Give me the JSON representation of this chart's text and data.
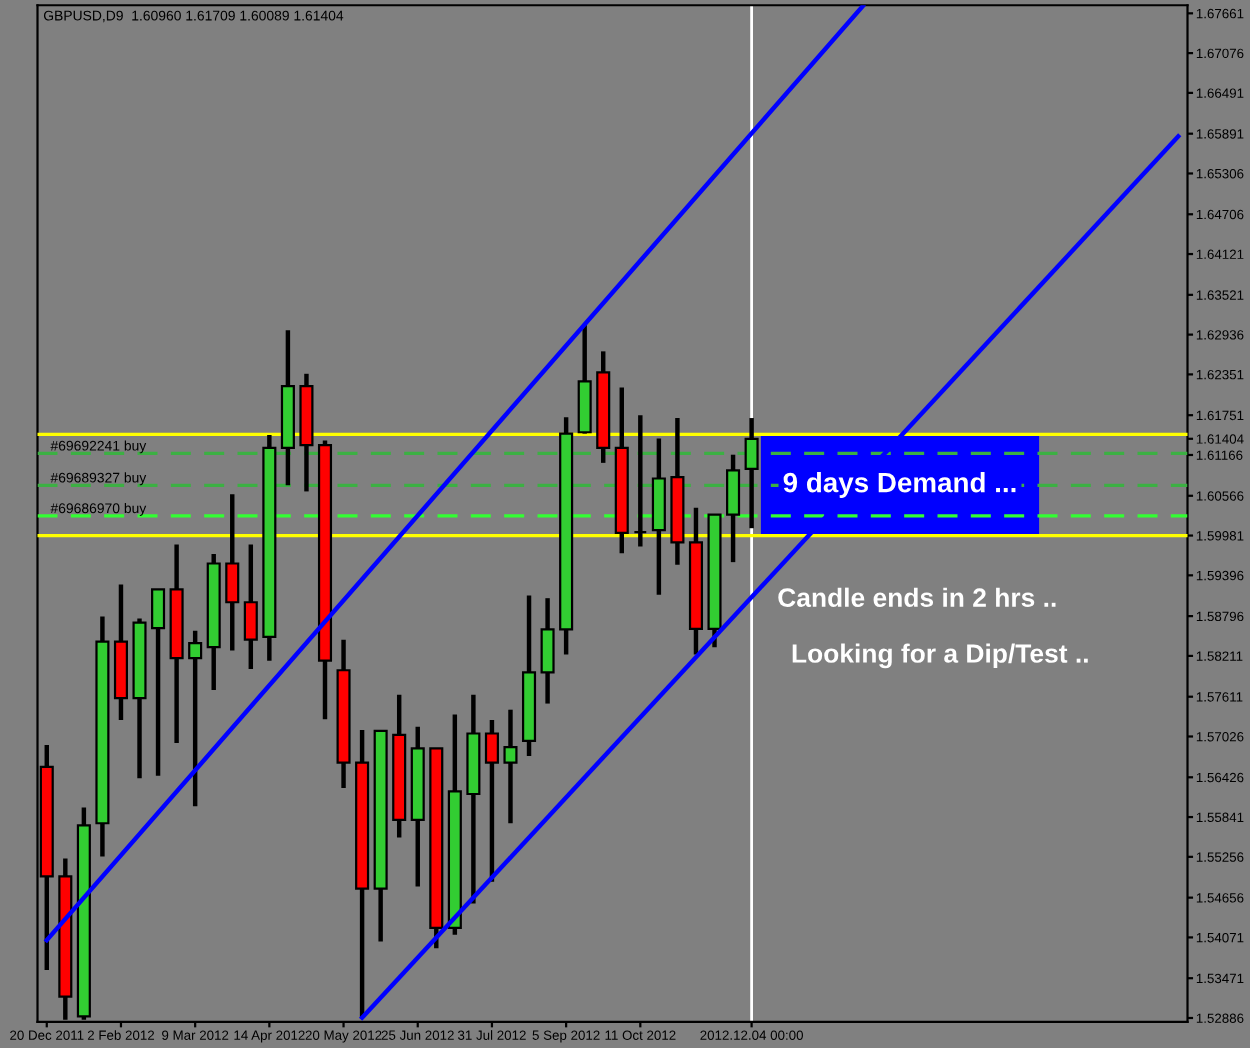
{
  "chart_data": {
    "type": "candlestick",
    "title": "GBPUSD,D9  1.60960 1.61709 1.60089 1.61404",
    "categories": [
      "20 Dec 2011",
      null,
      null,
      null,
      "2 Feb 2012",
      null,
      null,
      null,
      "9 Mar 2012",
      null,
      null,
      null,
      "14 Apr 2012",
      null,
      null,
      null,
      "20 May 2012",
      null,
      null,
      null,
      "25 Jun 2012",
      null,
      null,
      null,
      "31 Jul 2012",
      null,
      null,
      null,
      "5 Sep 2012",
      null,
      null,
      null,
      "11 Oct 2012",
      null,
      null,
      null,
      null,
      null,
      "2012.12.04 00:00",
      null,
      null,
      null,
      null,
      null,
      null,
      null,
      null,
      null,
      null,
      null,
      null,
      null,
      null,
      null,
      null,
      null,
      null,
      null,
      null,
      null,
      null,
      null
    ],
    "ohlc": [
      [
        1.5658,
        1.569,
        1.5359,
        1.5497
      ],
      [
        1.5497,
        1.5523,
        1.5286,
        1.532
      ],
      [
        1.5291,
        1.5598,
        1.5286,
        1.5572
      ],
      [
        1.5575,
        1.5879,
        1.5526,
        1.5842
      ],
      [
        1.5842,
        1.5926,
        1.5727,
        1.5759
      ],
      [
        1.5759,
        1.5876,
        1.5641,
        1.587
      ],
      [
        1.5862,
        1.5919,
        1.5645,
        1.5919
      ],
      [
        1.5919,
        1.5985,
        1.5693,
        1.5818
      ],
      [
        1.5818,
        1.5858,
        1.56,
        1.584
      ],
      [
        1.5834,
        1.5971,
        1.5771,
        1.5957
      ],
      [
        1.5957,
        1.6059,
        1.5829,
        1.59
      ],
      [
        1.59,
        1.5985,
        1.5802,
        1.5845
      ],
      [
        1.5849,
        1.6146,
        1.5814,
        1.6127
      ],
      [
        1.6127,
        1.63,
        1.6072,
        1.6218
      ],
      [
        1.6218,
        1.6236,
        1.6063,
        1.6131
      ],
      [
        1.6131,
        1.6138,
        1.5728,
        1.5814
      ],
      [
        1.58,
        1.5845,
        1.5627,
        1.5664
      ],
      [
        1.5664,
        1.5712,
        1.529,
        1.5479
      ],
      [
        1.5479,
        1.5711,
        1.5401,
        1.5711
      ],
      [
        1.5705,
        1.5764,
        1.5554,
        1.558
      ],
      [
        1.558,
        1.5717,
        1.5482,
        1.5685
      ],
      [
        1.5685,
        1.5685,
        1.5391,
        1.5421
      ],
      [
        1.5421,
        1.5735,
        1.5411,
        1.5622
      ],
      [
        1.5618,
        1.5764,
        1.5457,
        1.5707
      ],
      [
        1.5707,
        1.5727,
        1.5489,
        1.5664
      ],
      [
        1.5664,
        1.5742,
        1.5575,
        1.5687
      ],
      [
        1.5696,
        1.591,
        1.5674,
        1.5797
      ],
      [
        1.5797,
        1.5906,
        1.5751,
        1.586
      ],
      [
        1.586,
        1.6172,
        1.5823,
        1.6148
      ],
      [
        1.615,
        1.6308,
        1.6148,
        1.6225
      ],
      [
        1.6238,
        1.6269,
        1.6105,
        1.6127
      ],
      [
        1.6127,
        1.6216,
        1.5972,
        1.6002
      ],
      [
        1.6003,
        1.6175,
        1.5982,
        1.6003
      ],
      [
        1.6006,
        1.6141,
        1.5911,
        1.6082
      ],
      [
        1.6084,
        1.6171,
        1.5955,
        1.5988
      ],
      [
        1.5988,
        1.6039,
        1.5823,
        1.5861
      ],
      [
        1.5861,
        1.6029,
        1.5834,
        1.6029
      ],
      [
        1.6029,
        1.6117,
        1.5959,
        1.6094
      ],
      [
        1.6096,
        1.61709,
        1.60089,
        1.61404
      ],
      null,
      null,
      null,
      null,
      null,
      null,
      null,
      null,
      null,
      null,
      null,
      null,
      null,
      null,
      null,
      null,
      null,
      null,
      null,
      null,
      null,
      null,
      null
    ],
    "colors": [
      "#ff0000",
      "#ff0000",
      "#32cd32",
      "#32cd32",
      "#ff0000",
      "#32cd32",
      "#32cd32",
      "#ff0000",
      "#32cd32",
      "#32cd32",
      "#ff0000",
      "#ff0000",
      "#32cd32",
      "#32cd32",
      "#ff0000",
      "#ff0000",
      "#ff0000",
      "#ff0000",
      "#32cd32",
      "#ff0000",
      "#32cd32",
      "#ff0000",
      "#32cd32",
      "#32cd32",
      "#ff0000",
      "#32cd32",
      "#32cd32",
      "#32cd32",
      "#32cd32",
      "#32cd32",
      "#ff0000",
      "#ff0000",
      "#000000",
      "#32cd32",
      "#ff0000",
      "#ff0000",
      "#32cd32",
      "#32cd32",
      "#32cd32",
      null,
      null,
      null,
      null,
      null,
      null,
      null,
      null,
      null,
      null,
      null,
      null,
      null,
      null,
      null,
      null,
      null,
      null,
      null,
      null,
      null,
      null,
      null
    ],
    "series": [
      {
        "type": "line",
        "color": "#0000ff",
        "values": [
          1.5403,
          null,
          null,
          null,
          null,
          null,
          null,
          null,
          null,
          null,
          null,
          null,
          null,
          null,
          null,
          null,
          null,
          null,
          null,
          null,
          null,
          null,
          null,
          null,
          null,
          null,
          null,
          null,
          null,
          null,
          null,
          null,
          null,
          null,
          null,
          null,
          null,
          null,
          null,
          null,
          null,
          null,
          null,
          null,
          1.6777,
          null,
          null,
          null,
          null,
          null,
          null,
          null,
          null,
          null,
          null,
          null,
          null,
          null,
          null,
          null,
          null,
          null
        ]
      },
      {
        "type": "line",
        "color": "#0000ff",
        "values": [
          null,
          null,
          null,
          null,
          null,
          null,
          null,
          null,
          null,
          null,
          null,
          null,
          null,
          null,
          null,
          null,
          null,
          1.5289,
          null,
          null,
          null,
          null,
          null,
          null,
          null,
          null,
          null,
          null,
          null,
          null,
          null,
          null,
          null,
          null,
          null,
          null,
          null,
          null,
          null,
          null,
          null,
          null,
          null,
          null,
          null,
          null,
          null,
          null,
          null,
          null,
          null,
          null,
          null,
          null,
          null,
          null,
          null,
          null,
          null,
          null,
          null,
          1.6585
        ]
      }
    ],
    "ylim": [
      1.5283,
      1.6778
    ],
    "yticks": [
      1.67661,
      1.67076,
      1.66491,
      1.65891,
      1.65306,
      1.64706,
      1.64121,
      1.63521,
      1.62936,
      1.62351,
      1.61751,
      1.61404,
      1.61166,
      1.60566,
      1.59981,
      1.59396,
      1.58796,
      1.58211,
      1.57611,
      1.57026,
      1.56426,
      1.55841,
      1.55256,
      1.54656,
      1.54071,
      1.53471,
      1.52886
    ],
    "ref_lines": [
      {
        "axis": "y",
        "value": 1.6147,
        "color": "#ffff00",
        "line_style": "solid",
        "label": null
      },
      {
        "axis": "y",
        "value": 1.59981,
        "color": "#ffff00",
        "line_style": "solid",
        "label": null
      },
      {
        "axis": "y",
        "value": 1.6119,
        "color": "#3cb043",
        "line_style": "dashed",
        "label": "#69692241 buy"
      },
      {
        "axis": "y",
        "value": 1.6072,
        "color": "#3cb043",
        "line_style": "dashed",
        "label": "#69689327 buy"
      },
      {
        "axis": "y",
        "value": 1.6027,
        "color": "#32ff32",
        "line_style": "dashed",
        "label": "#69686970 buy"
      },
      {
        "axis": "x",
        "value": "2012.12.04 00:00",
        "color": "#ffffff",
        "line_style": "solid",
        "label": null
      }
    ],
    "bands": [
      {
        "axis": "y",
        "from": 1.5999,
        "to": 1.6146,
        "color": "#0000ff",
        "label": "9 days Demand ..."
      }
    ],
    "annotations": [
      "Candle ends in 2 hrs ..",
      "Looking for a Dip/Test .."
    ]
  }
}
